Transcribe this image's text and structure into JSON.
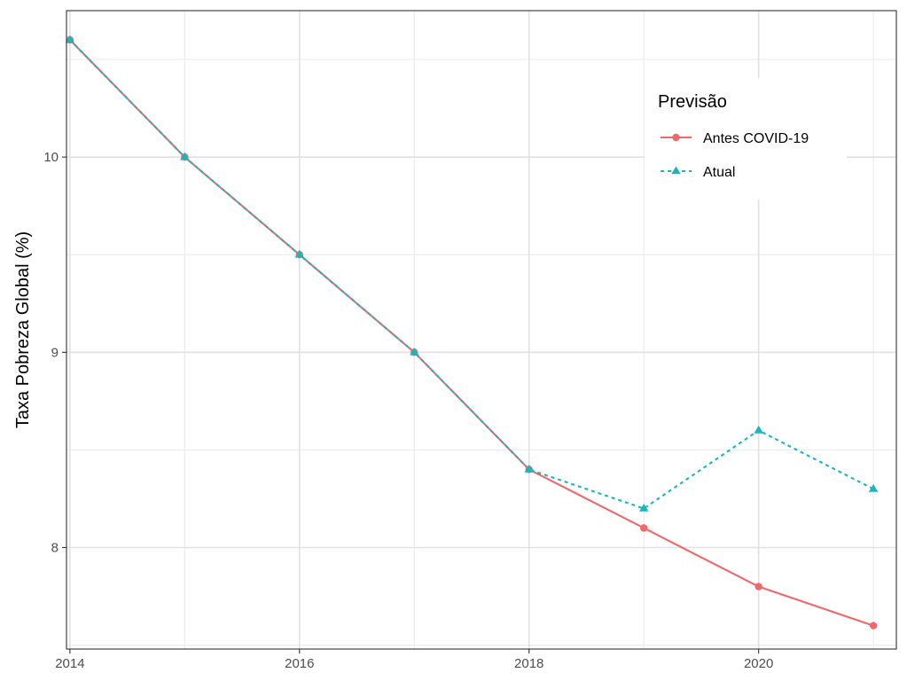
{
  "chart_data": {
    "type": "line",
    "title": "",
    "xlabel": "",
    "ylabel": "Taxa Pobreza Global (%)",
    "x": [
      2014,
      2015,
      2016,
      2017,
      2018,
      2019,
      2020,
      2021
    ],
    "xlim": [
      2013.97,
      2021.2
    ],
    "ylim": [
      7.48,
      10.75
    ],
    "x_ticks": [
      2014,
      2016,
      2018,
      2020
    ],
    "x_tick_labels": [
      "2014",
      "2016",
      "2018",
      "2020"
    ],
    "y_ticks": [
      8,
      9,
      10
    ],
    "y_tick_labels": [
      "8",
      "9",
      "10"
    ],
    "grid": true,
    "legend_title": "Previsão",
    "legend_position": "top-right",
    "series": [
      {
        "name": "Antes COVID-19",
        "color": "#f0686a",
        "line_style": "solid",
        "marker": "circle",
        "values": [
          10.6,
          10.0,
          9.5,
          9.0,
          8.4,
          8.1,
          7.8,
          7.6
        ]
      },
      {
        "name": "Atual",
        "color": "#1ab6bd",
        "line_style": "dashed",
        "marker": "triangle",
        "values": [
          10.6,
          10.0,
          9.5,
          9.0,
          8.4,
          8.2,
          8.6,
          8.3
        ]
      }
    ]
  }
}
